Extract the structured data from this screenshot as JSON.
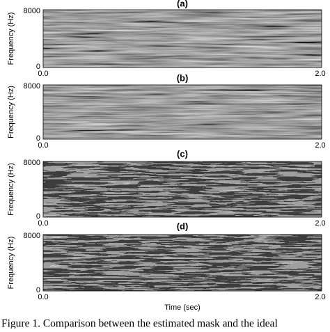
{
  "figure": {
    "panels": [
      {
        "label": "(a)",
        "ylabel": "Frequency (Hz)",
        "yticks": [
          "8000",
          "0"
        ],
        "xticks": [
          "0.0",
          "2.0"
        ]
      },
      {
        "label": "(b)",
        "ylabel": "Frequency (Hz)",
        "yticks": [
          "8000",
          "0"
        ],
        "xticks": [
          "0.0",
          "2.0"
        ]
      },
      {
        "label": "(c)",
        "ylabel": "Frequency (Hz)",
        "yticks": [
          "8000",
          "0"
        ],
        "xticks": [
          "0.0",
          "2.0"
        ]
      },
      {
        "label": "(d)",
        "ylabel": "Frequency (Hz)",
        "yticks": [
          "8000",
          "0"
        ],
        "xticks": [
          "0.0",
          "2.0"
        ]
      }
    ],
    "xlabel": "Time (sec)",
    "caption": "Figure 1. Comparison between the estimated mask and the ideal"
  }
}
